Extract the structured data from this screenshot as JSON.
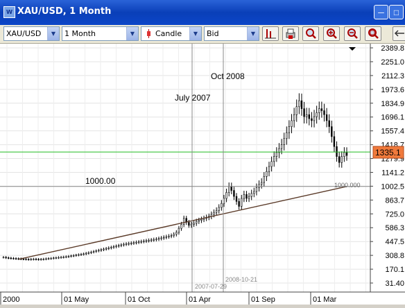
{
  "window": {
    "title": "XAU/USD, 1 Month"
  },
  "toolbar": {
    "symbol": "XAU/USD",
    "period": "1 Month",
    "chart_type": "Candle",
    "price_side": "Bid",
    "buttons": [
      "chart-settings-icon",
      "print-icon",
      "zoom-icon",
      "zoom-in-icon",
      "zoom-out-icon",
      "zoom-reset-icon"
    ]
  },
  "chart": {
    "current_price": "1335.1",
    "annotations": [
      {
        "text": "1000.00"
      },
      {
        "text": "July 2007"
      },
      {
        "text": "Oct 2008"
      },
      {
        "text": "1000.000"
      },
      {
        "text": "2007-07-29"
      },
      {
        "text": "2008-10-21"
      }
    ],
    "colors": {
      "horizontal_line": "#22bb22",
      "price_marker": "#f07a3c",
      "trendline": "#5a3a28"
    }
  },
  "chart_data": {
    "type": "candlestick",
    "title": "XAU/USD, 1 Month",
    "x_ticks": [
      "2000",
      "01 May",
      "01 Oct",
      "01 Apr",
      "01 Sep",
      "01 Mar"
    ],
    "y_ticks": [
      "2389.8",
      "2251.0",
      "2112.3",
      "1973.6",
      "1834.9",
      "1696.1",
      "1557.4",
      "1418.7",
      "1279.9",
      "1141.2",
      "1002.5",
      "863.7",
      "725.0",
      "586.3",
      "447.5",
      "308.8",
      "170.1",
      "31.40"
    ],
    "ylim": [
      31.4,
      2389.8
    ],
    "grid": true,
    "horizontal_line": 1345,
    "guide_level": 1000,
    "vertical_markers": [
      "2007-07-29",
      "2008-10-21"
    ],
    "trendline": {
      "start": 270,
      "end": 1000
    },
    "monthly_close": [
      290,
      285,
      282,
      280,
      278,
      276,
      275,
      273,
      272,
      270,
      268,
      270,
      272,
      270,
      268,
      270,
      272,
      275,
      278,
      280,
      283,
      285,
      288,
      290,
      293,
      296,
      300,
      304,
      308,
      312,
      316,
      320,
      324,
      330,
      336,
      342,
      348,
      354,
      360,
      366,
      372,
      378,
      384,
      390,
      396,
      402,
      408,
      414,
      420,
      424,
      428,
      432,
      436,
      440,
      444,
      448,
      452,
      456,
      460,
      464,
      468,
      472,
      478,
      484,
      490,
      496,
      502,
      508,
      520,
      540,
      580,
      620,
      680,
      640,
      610,
      620,
      630,
      650,
      660,
      670,
      680,
      690,
      700,
      720,
      740,
      760,
      790,
      830,
      880,
      940,
      1000,
      960,
      900,
      850,
      800,
      880,
      920,
      880,
      900,
      930,
      950,
      990,
      1020,
      1040,
      1100,
      1150,
      1200,
      1250,
      1300,
      1340,
      1380,
      1420,
      1480,
      1540,
      1600,
      1660,
      1720,
      1800,
      1860,
      1780,
      1700,
      1720,
      1680,
      1660,
      1700,
      1740,
      1780,
      1760,
      1720,
      1660,
      1600,
      1500,
      1400,
      1300,
      1240,
      1300,
      1340,
      1310
    ]
  }
}
